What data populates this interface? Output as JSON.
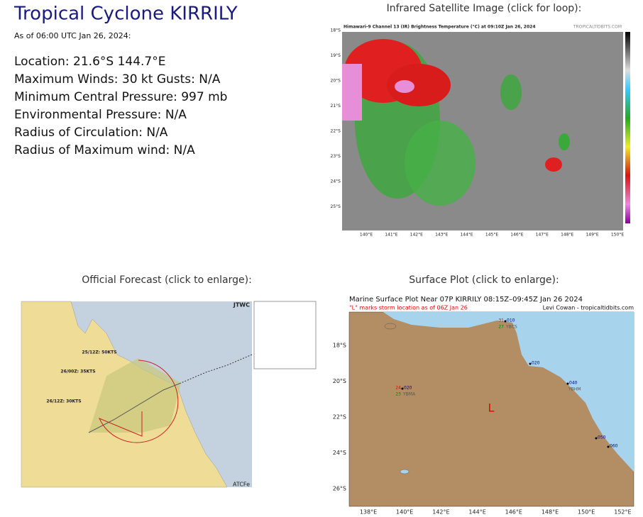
{
  "page": {
    "title": "Tropical Cyclone KIRRILY",
    "as_of": "As of 06:00 UTC Jan 26, 2024:",
    "details": [
      "Location: 21.6°S 144.7°E",
      "Maximum Winds: 30 kt  Gusts: N/A",
      "Minimum Central Pressure: 997 mb",
      "Environmental Pressure: N/A",
      "Radius of Circulation: N/A",
      "Radius of Maximum wind: N/A"
    ]
  },
  "satellite": {
    "heading": "Infrared Satellite Image (click for loop):",
    "caption": "Himawari-9 Channel 13 (IR) Brightness Temperature (°C) at 09:10Z Jan 26, 2024",
    "credit": "TROPICALTIDBITS.COM",
    "lat_labels": [
      "18°S",
      "19°S",
      "20°S",
      "21°S",
      "22°S",
      "23°S",
      "24°S",
      "25°S"
    ],
    "lon_labels": [
      "140°E",
      "141°E",
      "142°E",
      "143°E",
      "144°E",
      "145°E",
      "146°E",
      "147°E",
      "148°E",
      "149°E",
      "150°E"
    ]
  },
  "forecast": {
    "heading": "Official Forecast (click to enlarge):",
    "agency": "JTWC",
    "footer": "ATCFe",
    "points": [
      "25/12Z: 50KTS",
      "26/00Z: 35KTS",
      "26/12Z: 30KTS"
    ]
  },
  "surface": {
    "heading": "Surface Plot (click to enlarge):",
    "title": "Marine Surface Plot Near 07P KIRRILY 08:15Z–09:45Z Jan 26 2024",
    "subtitle": "\"L\" marks storm location as of 06Z Jan 26",
    "credit": "Levi Cowan - tropicaltidbits.com",
    "storm_marker": "L",
    "lat_labels": [
      "18°S",
      "20°S",
      "22°S",
      "24°S",
      "26°S"
    ],
    "lon_labels": [
      "138°E",
      "140°E",
      "142°E",
      "144°E",
      "146°E",
      "148°E",
      "150°E",
      "152°E"
    ],
    "stations": [
      {
        "temp": "24",
        "dew": "23",
        "id": "YBMA",
        "pressure": "020"
      },
      {
        "temp": "31",
        "dew": "27",
        "id": "YBCS",
        "pressure": "010"
      },
      {
        "temp": "",
        "dew": "",
        "id": "",
        "pressure": "020"
      },
      {
        "temp": "",
        "dew": "",
        "id": "YBHM",
        "pressure": "040"
      },
      {
        "temp": "",
        "dew": "",
        "id": "",
        "pressure": "050"
      },
      {
        "temp": "",
        "dew": "",
        "id": "",
        "pressure": "060"
      }
    ]
  }
}
